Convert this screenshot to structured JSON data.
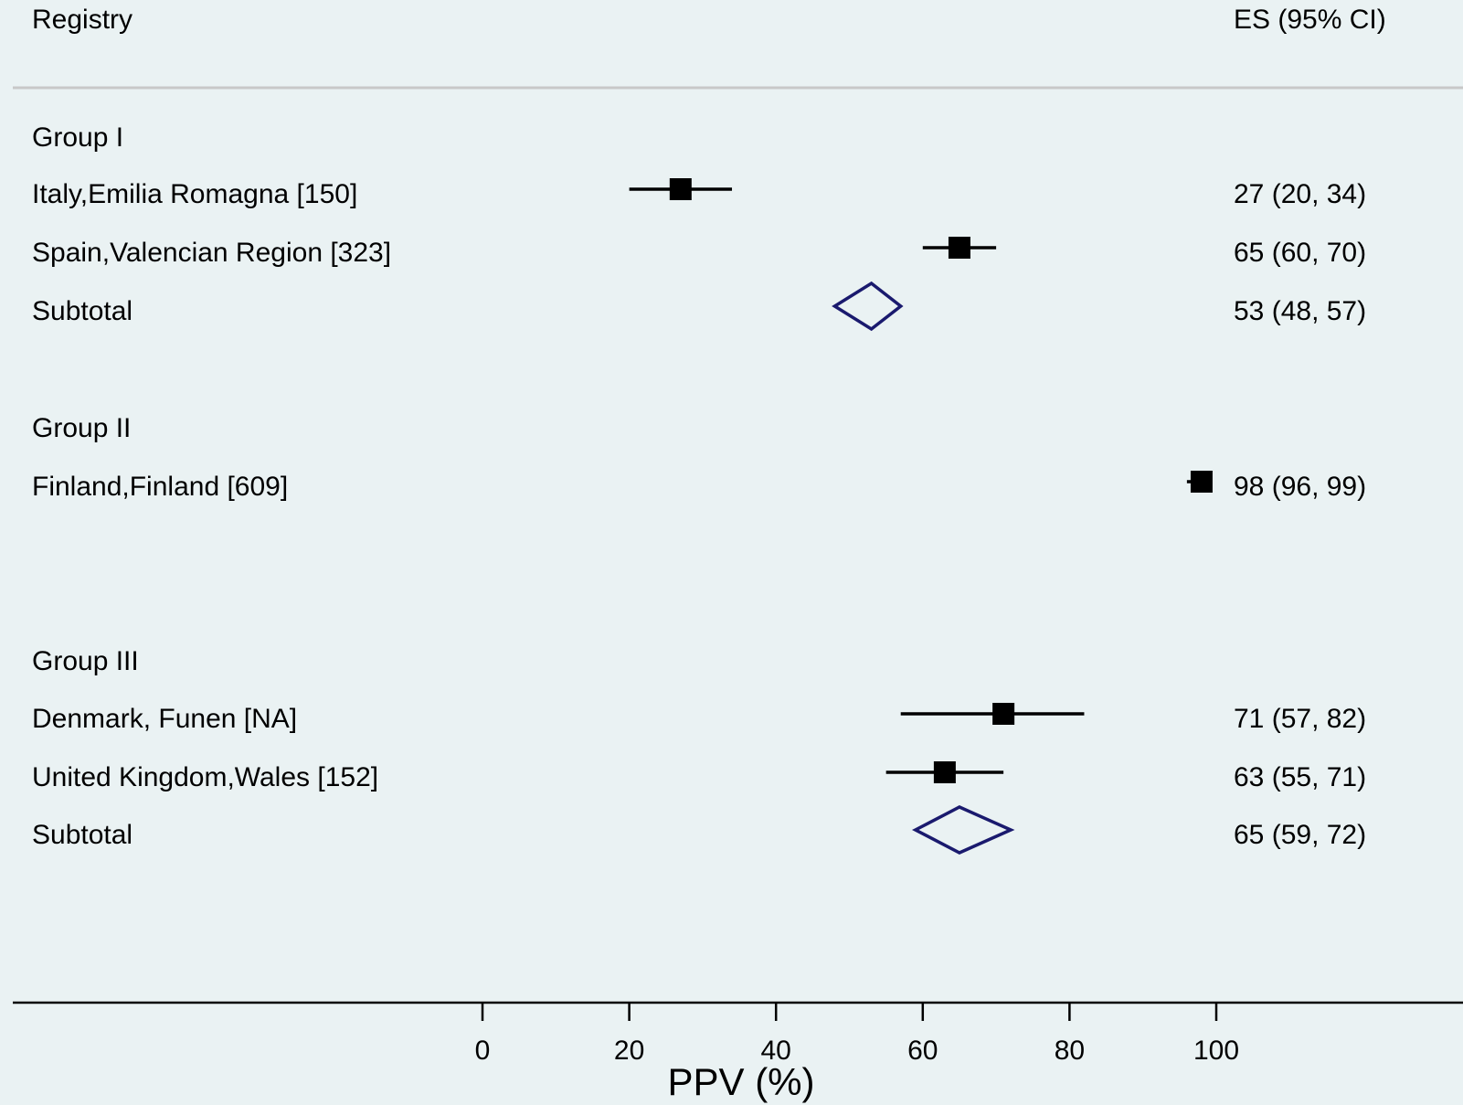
{
  "chart_data": {
    "type": "forest",
    "header": {
      "left": "Registry",
      "right": "ES (95% CI)"
    },
    "xlabel": "PPV (%)",
    "xlim": [
      0,
      100
    ],
    "xticks": [
      "0",
      "20",
      "40",
      "60",
      "80",
      "100"
    ],
    "rows": [
      {
        "kind": "group",
        "label": "Group I"
      },
      {
        "kind": "study",
        "label": "Italy,Emilia Romagna [150]",
        "es": 27,
        "lo": 20,
        "hi": 34,
        "text": "27 (20, 34)"
      },
      {
        "kind": "study",
        "label": "Spain,Valencian Region [323]",
        "es": 65,
        "lo": 60,
        "hi": 70,
        "text": "65 (60, 70)"
      },
      {
        "kind": "subtotal",
        "label": "Subtotal",
        "es": 53,
        "lo": 48,
        "hi": 57,
        "text": "53 (48, 57)"
      },
      {
        "kind": "group",
        "label": "Group II"
      },
      {
        "kind": "study",
        "label": "Finland,Finland [609]",
        "es": 98,
        "lo": 96,
        "hi": 99,
        "text": "98 (96, 99)"
      },
      {
        "kind": "group",
        "label": "Group III"
      },
      {
        "kind": "study",
        "label": "Denmark, Funen [NA]",
        "es": 71,
        "lo": 57,
        "hi": 82,
        "text": "71 (57, 82)"
      },
      {
        "kind": "study",
        "label": "United Kingdom,Wales [152]",
        "es": 63,
        "lo": 55,
        "hi": 71,
        "text": "63 (55, 71)"
      },
      {
        "kind": "subtotal",
        "label": "Subtotal",
        "es": 65,
        "lo": 59,
        "hi": 72,
        "text": "65 (59, 72)"
      }
    ],
    "colors": {
      "marker": "#000000",
      "diamond": "#1a1a6e",
      "header_rule": "#c8c8c8"
    }
  }
}
